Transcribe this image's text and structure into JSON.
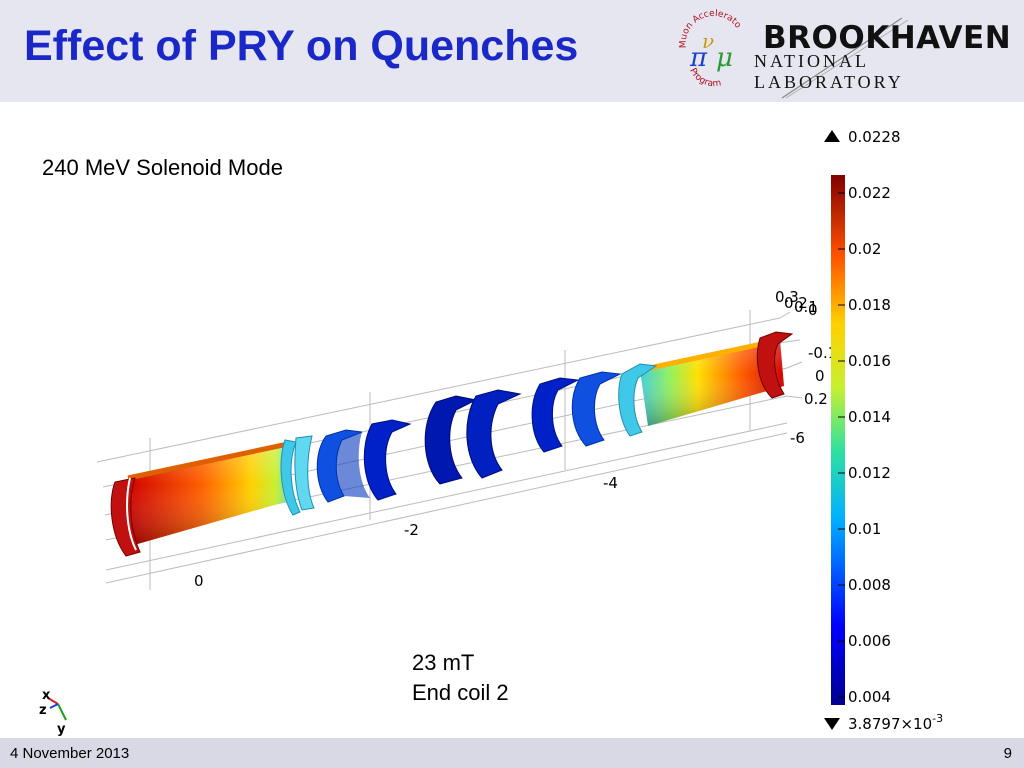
{
  "slide": {
    "title": "Effect of PRY on Quenches",
    "subtitle": "240 MeV Solenoid Mode",
    "note_line1": "23 mT",
    "note_line2": "End coil 2",
    "footer_date": "4 November 2013",
    "page_number": "9"
  },
  "logos": {
    "map_text_top": "Muon Accelerator",
    "map_text_bottom": "Program",
    "lab_name": "BROOKHAVEN",
    "lab_subtitle": "NATIONAL LABORATORY"
  },
  "colorbar": {
    "max_label": "0.0228",
    "min_label_mantissa": "3.8797×10",
    "min_label_exp": "-3",
    "ticks": [
      "0.022",
      "0.02",
      "0.018",
      "0.016",
      "0.014",
      "0.012",
      "0.01",
      "0.008",
      "0.006",
      "0.004"
    ]
  },
  "axes": {
    "x_ticks": [
      "0",
      "-2",
      "-4",
      "-6"
    ],
    "side_ticks": [
      "0.3",
      "0.2",
      "0.1",
      "0",
      "-0.1",
      "0",
      "0.2"
    ]
  },
  "triad": {
    "x": "x",
    "y": "y",
    "z": "z"
  },
  "icons": [
    "triangle-up-icon",
    "triangle-down-icon"
  ],
  "colors": {
    "title": "#1a28c8",
    "header_bg": "#e6e6f0",
    "footer_bg": "#d9d9e6"
  }
}
